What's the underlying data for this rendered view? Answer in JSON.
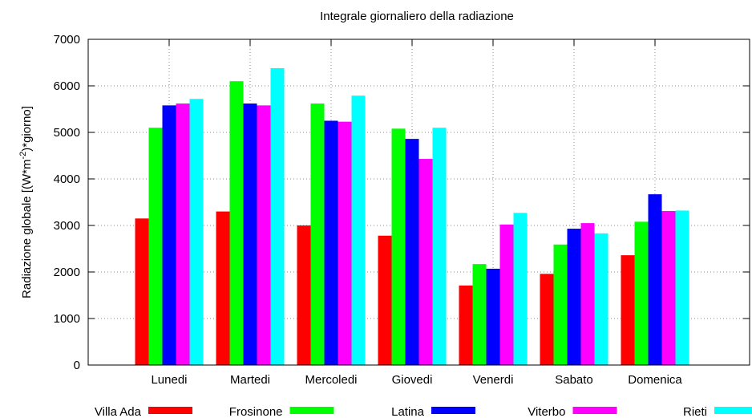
{
  "chart_data": {
    "type": "bar",
    "title": "Integrale giornaliero della radiazione",
    "y_label": [
      "Radiazione globale [(W*m",
      "-2",
      ")*giorno]"
    ],
    "categories": [
      "Lunedi",
      "Martedi",
      "Mercoledi",
      "Giovedi",
      "Venerdi",
      "Sabato",
      "Domenica"
    ],
    "series": [
      {
        "name": "Villa Ada",
        "color": "#ff0000",
        "values": [
          3150,
          3300,
          3000,
          2780,
          1710,
          1960,
          2360
        ]
      },
      {
        "name": "Frosinone",
        "color": "#00ff00",
        "values": [
          5100,
          6100,
          5620,
          5080,
          2170,
          2590,
          3080
        ]
      },
      {
        "name": "Latina",
        "color": "#0000ff",
        "values": [
          5580,
          5620,
          5250,
          4860,
          2070,
          2930,
          3670
        ]
      },
      {
        "name": "Viterbo",
        "color": "#ff00ff",
        "values": [
          5620,
          5580,
          5230,
          4430,
          3020,
          3050,
          3310
        ]
      },
      {
        "name": "Rieti",
        "color": "#00ffff",
        "values": [
          5720,
          6380,
          5790,
          5100,
          3270,
          2830,
          3320
        ]
      }
    ],
    "ylim": [
      0,
      7000
    ],
    "yticks": [
      0,
      1000,
      2000,
      3000,
      4000,
      5000,
      6000,
      7000
    ],
    "grid": true,
    "legend": "bottom"
  }
}
